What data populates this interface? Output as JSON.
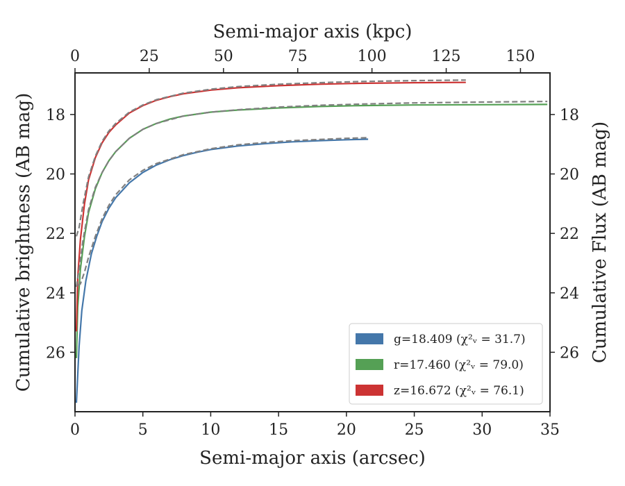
{
  "chart_data": {
    "type": "line",
    "xlabel_bottom": "Semi-major axis (arcsec)",
    "xlabel_top": "Semi-major axis (kpc)",
    "ylabel_left": "Cumulative brightness (AB mag)",
    "ylabel_right": "Cumulative Flux (AB mag)",
    "xlim": [
      0,
      35
    ],
    "ylim_top_value": 16.6,
    "ylim_bottom_value": 28.0,
    "y_inverted": true,
    "top_axis_scale_kpc_per_arcsec": 4.57,
    "x_ticks": [
      "0",
      "5",
      "10",
      "15",
      "20",
      "25",
      "30",
      "35"
    ],
    "x_tick_values": [
      0,
      5,
      10,
      15,
      20,
      25,
      30,
      35
    ],
    "top_ticks": [
      "0",
      "25",
      "50",
      "75",
      "100",
      "125",
      "150"
    ],
    "top_tick_values": [
      0,
      25,
      50,
      75,
      100,
      125,
      150
    ],
    "y_ticks": [
      "18",
      "20",
      "22",
      "24",
      "26"
    ],
    "y_tick_values": [
      18,
      20,
      22,
      24,
      26
    ],
    "legend_position": "lower-right",
    "model_color": "#808080",
    "series": [
      {
        "name": "g",
        "legend": "g=18.409 (χ²ᵥ = 31.7)",
        "color": "#4477aa",
        "x": [
          0.1,
          0.3,
          0.5,
          0.8,
          1.2,
          1.6,
          2.0,
          2.5,
          3.0,
          4.0,
          5.0,
          6.0,
          7.0,
          8.0,
          9.0,
          10.0,
          12.0,
          14.0,
          16.0,
          18.0,
          20.0,
          21.6
        ],
        "y": [
          27.7,
          25.8,
          24.6,
          23.6,
          22.7,
          22.1,
          21.6,
          21.15,
          20.8,
          20.3,
          19.95,
          19.7,
          19.52,
          19.38,
          19.27,
          19.18,
          19.06,
          18.98,
          18.92,
          18.88,
          18.85,
          18.83
        ],
        "model_x": [
          0.2,
          0.4,
          0.7,
          1.0,
          1.5,
          2.0,
          2.5,
          3.0,
          4.0,
          5.0,
          6.0,
          8.0,
          10.0,
          12.0,
          14.0,
          16.0,
          18.0,
          20.0,
          21.6
        ],
        "model_y": [
          23.75,
          23.7,
          23.3,
          22.8,
          22.1,
          21.5,
          21.05,
          20.7,
          20.2,
          19.88,
          19.65,
          19.35,
          19.15,
          19.02,
          18.94,
          18.88,
          18.84,
          18.8,
          18.78
        ]
      },
      {
        "name": "r",
        "legend": "r=17.460 (χ²ᵥ = 79.0)",
        "color": "#55a055",
        "x": [
          0.1,
          0.2,
          0.4,
          0.7,
          1.0,
          1.5,
          2.0,
          2.5,
          3.0,
          4.0,
          5.0,
          6.0,
          7.0,
          8.0,
          10.0,
          12.0,
          15.0,
          18.0,
          21.0,
          25.0,
          30.0,
          34.8
        ],
        "y": [
          26.2,
          24.5,
          23.2,
          22.1,
          21.3,
          20.5,
          19.95,
          19.55,
          19.25,
          18.8,
          18.5,
          18.3,
          18.15,
          18.05,
          17.92,
          17.85,
          17.78,
          17.73,
          17.7,
          17.68,
          17.67,
          17.66
        ],
        "model_x": [
          0.1,
          0.3,
          0.6,
          1.0,
          1.5,
          2.0,
          2.5,
          3.0,
          4.0,
          5.0,
          6.0,
          8.0,
          10.0,
          12.0,
          15.0,
          18.0,
          21.0,
          25.0,
          30.0,
          34.8
        ],
        "model_y": [
          23.8,
          23.2,
          22.2,
          21.2,
          20.45,
          19.95,
          19.55,
          19.25,
          18.8,
          18.5,
          18.3,
          18.05,
          17.92,
          17.84,
          17.75,
          17.69,
          17.65,
          17.61,
          17.58,
          17.56
        ]
      },
      {
        "name": "z",
        "legend": "z=16.672 (χ²ᵥ = 76.1)",
        "color": "#cc3333",
        "x": [
          0.1,
          0.2,
          0.4,
          0.7,
          1.0,
          1.5,
          2.0,
          2.5,
          3.0,
          4.0,
          5.0,
          6.0,
          7.0,
          8.0,
          10.0,
          12.0,
          15.0,
          18.0,
          21.0,
          25.0,
          28.8
        ],
        "y": [
          25.3,
          23.5,
          22.2,
          21.0,
          20.2,
          19.45,
          18.95,
          18.6,
          18.35,
          17.95,
          17.7,
          17.52,
          17.4,
          17.3,
          17.18,
          17.1,
          17.03,
          16.98,
          16.95,
          16.93,
          16.92
        ],
        "model_x": [
          0.1,
          0.3,
          0.6,
          1.0,
          1.5,
          2.0,
          2.5,
          3.0,
          4.0,
          5.0,
          6.0,
          8.0,
          10.0,
          12.0,
          15.0,
          18.0,
          21.0,
          25.0,
          28.8
        ],
        "model_y": [
          22.1,
          21.8,
          21.0,
          20.1,
          19.4,
          18.9,
          18.55,
          18.3,
          17.92,
          17.68,
          17.5,
          17.28,
          17.15,
          17.06,
          16.98,
          16.93,
          16.89,
          16.86,
          16.84
        ]
      }
    ]
  }
}
